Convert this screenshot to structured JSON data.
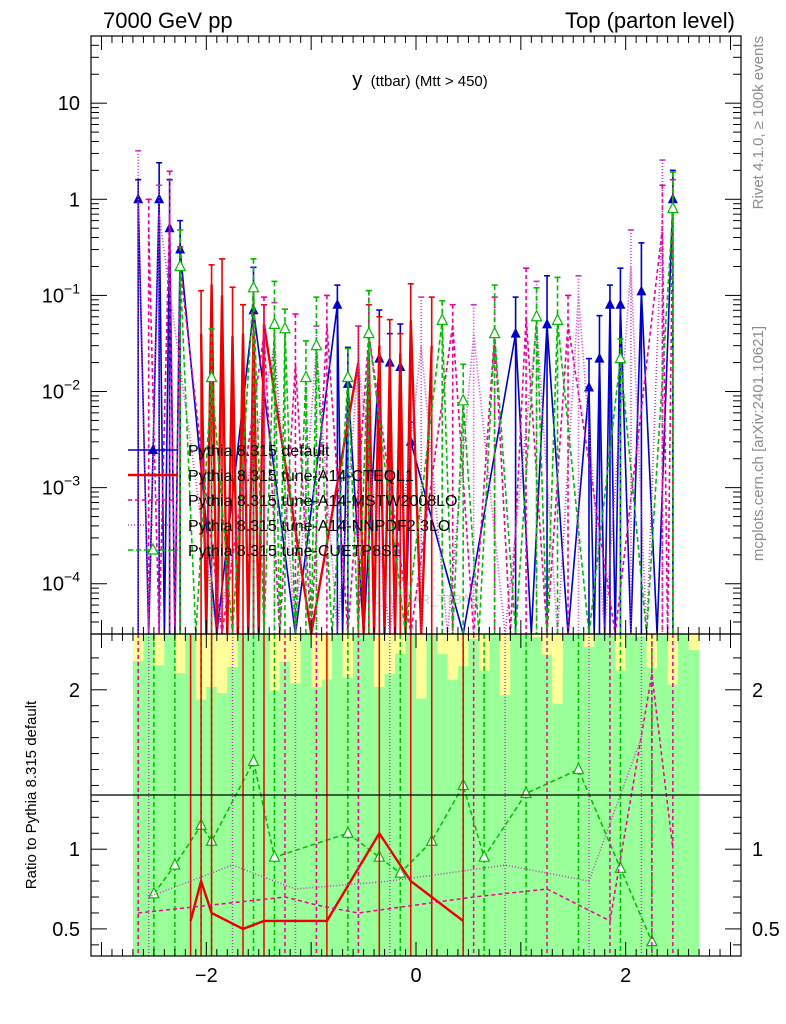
{
  "chart_data": {
    "type": "line",
    "header_left": "7000 GeV pp",
    "header_right": "Top (parton level)",
    "title_main": "y",
    "title_sub": "(ttbar) (Mtt > 450)",
    "watermark": "MC_TTBAR_TTBAR",
    "side_label_top": "Rivet 4.1.0, ≥ 100k events",
    "side_label_bottom": "mcplots.cern.ch [arXiv:2401.10621]",
    "ratio_ylabel": "Ratio to Pythia 8.315 default",
    "x_range": [
      -3.1,
      3.1
    ],
    "y_range_main": [
      3e-05,
      50
    ],
    "y_scale_main": "log",
    "y_range_ratio": [
      0.33,
      2.35
    ],
    "x_ticks": [
      {
        "v": -2,
        "label": "−2"
      },
      {
        "v": 0,
        "label": "0"
      },
      {
        "v": 2,
        "label": "2"
      }
    ],
    "y_ticks_main": [
      {
        "v": 10,
        "base": "10",
        "exp": ""
      },
      {
        "v": 1,
        "base": "1",
        "exp": ""
      },
      {
        "v": 0.1,
        "base": "10",
        "exp": "−1"
      },
      {
        "v": 0.01,
        "base": "10",
        "exp": "−2"
      },
      {
        "v": 0.001,
        "base": "10",
        "exp": "−3"
      },
      {
        "v": 0.0001,
        "base": "10",
        "exp": "−4"
      }
    ],
    "y_ticks_ratio": [
      {
        "v": 0.5,
        "label": "0.5"
      },
      {
        "v": 1,
        "label": "1"
      },
      {
        "v": 2,
        "label": "2"
      }
    ],
    "legend_position": "middle-left",
    "series": [
      {
        "name": "Pythia 8.315 default",
        "color": "#0000cc",
        "dash": "",
        "marker": "triangle-filled",
        "points": [
          {
            "x": -2.65,
            "y": 1.0
          },
          {
            "x": -2.45,
            "y": 1.0
          },
          {
            "x": -2.35,
            "y": 0.5
          },
          {
            "x": -2.25,
            "y": 0.3
          },
          {
            "x": -1.55,
            "y": 0.07
          },
          {
            "x": -0.75,
            "y": 0.08
          },
          {
            "x": -0.65,
            "y": 0.012
          },
          {
            "x": -0.35,
            "y": 0.022
          },
          {
            "x": -0.25,
            "y": 0.02
          },
          {
            "x": -0.15,
            "y": 0.018
          },
          {
            "x": -0.05,
            "y": 0.003
          },
          {
            "x": 0.95,
            "y": 0.04
          },
          {
            "x": 1.25,
            "y": 0.05
          },
          {
            "x": 1.65,
            "y": 0.011
          },
          {
            "x": 1.75,
            "y": 0.022
          },
          {
            "x": 1.85,
            "y": 0.08
          },
          {
            "x": 1.95,
            "y": 0.08
          },
          {
            "x": 2.15,
            "y": 0.11
          },
          {
            "x": 2.45,
            "y": 1.0
          }
        ]
      },
      {
        "name": "Pythia 8.315 tune-A14-CTEQL1",
        "color": "#ee0000",
        "dash": "",
        "marker": "none",
        "points": [
          {
            "x": -2.05,
            "y": 0.04
          },
          {
            "x": -1.95,
            "y": 0.13
          },
          {
            "x": -1.85,
            "y": 0.1
          },
          {
            "x": -1.75,
            "y": 0.038
          },
          {
            "x": -1.65,
            "y": 0.04
          },
          {
            "x": -1.55,
            "y": 0.04
          },
          {
            "x": -1.45,
            "y": 0.05
          },
          {
            "x": -0.55,
            "y": 0.02
          },
          {
            "x": -0.45,
            "y": 0.025
          },
          {
            "x": -0.35,
            "y": 0.03
          },
          {
            "x": -0.25,
            "y": 0.02
          },
          {
            "x": -0.15,
            "y": 0.025
          },
          {
            "x": -0.05,
            "y": 0.055
          },
          {
            "x": 0.15,
            "y": 0.03
          }
        ]
      },
      {
        "name": "Pythia 8.315 tune-A14-MSTW2008LO",
        "color": "#ee0099",
        "dash": "4,3",
        "marker": "none",
        "points": [
          {
            "x": -2.55,
            "y": 0.5
          },
          {
            "x": -2.35,
            "y": 0.7
          },
          {
            "x": -2.25,
            "y": 0.2
          },
          {
            "x": -1.45,
            "y": 0.04
          },
          {
            "x": -1.15,
            "y": 0.02
          },
          {
            "x": -0.85,
            "y": 0.05
          },
          {
            "x": -0.45,
            "y": 0.04
          },
          {
            "x": 0.35,
            "y": 0.05
          },
          {
            "x": 0.75,
            "y": 0.04
          },
          {
            "x": 1.05,
            "y": 0.06
          },
          {
            "x": 1.45,
            "y": 0.05
          },
          {
            "x": 2.35,
            "y": 0.5
          },
          {
            "x": 2.45,
            "y": 1.0
          }
        ]
      },
      {
        "name": "Pythia 8.315 tune-A14-NNPDF2.3LO",
        "color": "#cc33cc",
        "dash": "1,2",
        "marker": "none",
        "points": [
          {
            "x": -2.65,
            "y": 1.0
          },
          {
            "x": -2.45,
            "y": 0.7
          },
          {
            "x": -1.35,
            "y": 0.03
          },
          {
            "x": -0.95,
            "y": 0.03
          },
          {
            "x": -0.55,
            "y": 0.02
          },
          {
            "x": 0.05,
            "y": 0.03
          },
          {
            "x": 0.55,
            "y": 0.04
          },
          {
            "x": 1.15,
            "y": 0.05
          },
          {
            "x": 1.55,
            "y": 0.1
          },
          {
            "x": 2.05,
            "y": 0.2
          },
          {
            "x": 2.35,
            "y": 0.8
          }
        ]
      },
      {
        "name": "Pythia 8.315 tune-CUETP8S1",
        "color": "#00bb00",
        "dash": "5,3",
        "marker": "triangle-open",
        "points": [
          {
            "x": -2.25,
            "y": 0.2
          },
          {
            "x": -1.95,
            "y": 0.014
          },
          {
            "x": -1.55,
            "y": 0.12
          },
          {
            "x": -1.35,
            "y": 0.05
          },
          {
            "x": -1.25,
            "y": 0.045
          },
          {
            "x": -1.05,
            "y": 0.014
          },
          {
            "x": -0.95,
            "y": 0.03
          },
          {
            "x": -0.65,
            "y": 0.014
          },
          {
            "x": -0.45,
            "y": 0.04
          },
          {
            "x": 0.25,
            "y": 0.055
          },
          {
            "x": 0.45,
            "y": 0.008
          },
          {
            "x": 0.75,
            "y": 0.04
          },
          {
            "x": 1.15,
            "y": 0.06
          },
          {
            "x": 1.35,
            "y": 0.055
          },
          {
            "x": 1.95,
            "y": 0.022
          },
          {
            "x": 2.45,
            "y": 0.8
          }
        ]
      }
    ],
    "ratio_series": [
      {
        "name": "Pythia 8.315 tune-CUETP8S1",
        "points": [
          {
            "x": -2.5,
            "y": 0.72
          },
          {
            "x": -2.3,
            "y": 0.9
          },
          {
            "x": -2.05,
            "y": 1.15
          },
          {
            "x": -1.95,
            "y": 1.05
          },
          {
            "x": -1.55,
            "y": 1.55
          },
          {
            "x": -1.35,
            "y": 0.95
          },
          {
            "x": -0.65,
            "y": 1.1
          },
          {
            "x": -0.35,
            "y": 0.95
          },
          {
            "x": -0.15,
            "y": 0.85
          },
          {
            "x": 0.15,
            "y": 1.05
          },
          {
            "x": 0.45,
            "y": 1.4
          },
          {
            "x": 0.65,
            "y": 0.95
          },
          {
            "x": 1.05,
            "y": 1.35
          },
          {
            "x": 1.55,
            "y": 1.5
          },
          {
            "x": 1.95,
            "y": 0.88
          },
          {
            "x": 2.25,
            "y": 0.42
          }
        ]
      },
      {
        "name": "Pythia 8.315 tune-A14-CTEQL1",
        "points": [
          {
            "x": -2.15,
            "y": 0.55
          },
          {
            "x": -2.05,
            "y": 0.8
          },
          {
            "x": -1.95,
            "y": 0.6
          },
          {
            "x": -1.65,
            "y": 0.5
          },
          {
            "x": -1.45,
            "y": 0.55
          },
          {
            "x": -0.85,
            "y": 0.55
          },
          {
            "x": -0.35,
            "y": 1.1
          },
          {
            "x": -0.05,
            "y": 0.8
          },
          {
            "x": 0.15,
            "y": 0.7
          },
          {
            "x": 0.45,
            "y": 0.55
          }
        ]
      },
      {
        "name": "Pythia 8.315 tune-A14-MSTW2008LO",
        "points": [
          {
            "x": -2.65,
            "y": 0.6
          },
          {
            "x": -1.25,
            "y": 0.7
          },
          {
            "x": -0.95,
            "y": 0.65
          },
          {
            "x": -0.55,
            "y": 0.6
          },
          {
            "x": 0.55,
            "y": 0.7
          },
          {
            "x": 1.25,
            "y": 0.75
          },
          {
            "x": 1.85,
            "y": 0.55
          },
          {
            "x": 2.25,
            "y": 2.1
          },
          {
            "x": 2.45,
            "y": 1.0
          }
        ]
      },
      {
        "name": "Pythia 8.315 tune-A14-NNPDF2.3LO",
        "points": [
          {
            "x": -2.55,
            "y": 0.7
          },
          {
            "x": -1.75,
            "y": 0.9
          },
          {
            "x": -1.15,
            "y": 0.75
          },
          {
            "x": -0.25,
            "y": 0.8
          },
          {
            "x": 0.85,
            "y": 0.9
          },
          {
            "x": 1.65,
            "y": 0.8
          },
          {
            "x": 2.15,
            "y": 1.7
          }
        ]
      }
    ]
  }
}
